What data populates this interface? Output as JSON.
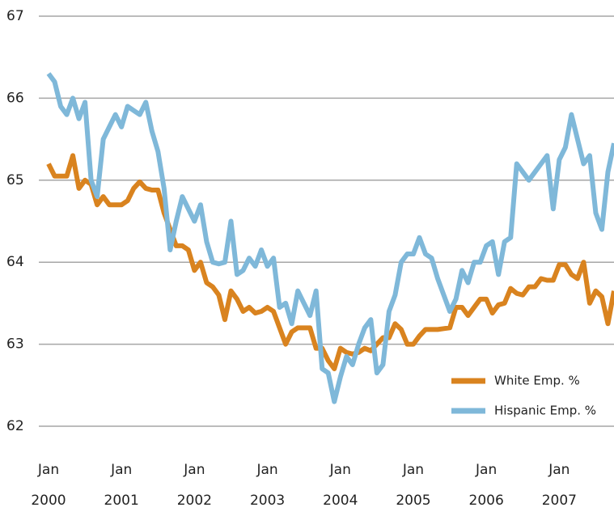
{
  "chart_data": {
    "type": "line",
    "categories": [
      "Jan 2000",
      null,
      null,
      null,
      null,
      null,
      null,
      null,
      null,
      null,
      null,
      null,
      "Jan 2001",
      null,
      null,
      null,
      null,
      null,
      null,
      null,
      null,
      null,
      null,
      null,
      "Jan 2002",
      null,
      null,
      null,
      null,
      null,
      null,
      null,
      null,
      null,
      null,
      null,
      "Jan 2003",
      null,
      null,
      null,
      null,
      null,
      null,
      null,
      null,
      null,
      null,
      null,
      "Jan 2004",
      null,
      null,
      null,
      null,
      null,
      null,
      null,
      null,
      null,
      null,
      null,
      "Jan 2005",
      null,
      null,
      null,
      null,
      null,
      null,
      null,
      null,
      null,
      null,
      null,
      "Jan 2006",
      null,
      null,
      null,
      null,
      null,
      null,
      null,
      null,
      null,
      null,
      null,
      "Jan 2007",
      null,
      null,
      null,
      null,
      null,
      null,
      null,
      null,
      null
    ],
    "series": [
      {
        "name": "White Emp. %",
        "color": "#d9831f",
        "values": [
          65.2,
          65.05,
          65.05,
          65.05,
          65.3,
          64.9,
          65.0,
          64.95,
          64.7,
          64.8,
          64.7,
          64.7,
          64.7,
          64.75,
          64.9,
          64.98,
          64.9,
          64.88,
          64.88,
          64.6,
          64.4,
          64.2,
          64.2,
          64.15,
          63.9,
          64.0,
          63.75,
          63.7,
          63.6,
          63.3,
          63.65,
          63.55,
          63.4,
          63.45,
          63.38,
          63.4,
          63.45,
          63.4,
          63.2,
          63.0,
          63.15,
          63.2,
          63.2,
          63.2,
          62.95,
          62.95,
          62.8,
          62.7,
          62.95,
          62.9,
          62.88,
          62.9,
          62.95,
          62.92,
          63.0,
          63.08,
          63.08,
          63.25,
          63.18,
          63.0,
          63.0,
          63.1,
          63.18,
          63.18,
          63.18,
          63.19,
          63.2,
          63.45,
          63.45,
          63.35,
          63.45,
          63.55,
          63.55,
          63.38,
          63.48,
          63.5,
          63.68,
          63.62,
          63.6,
          63.7,
          63.7,
          63.8,
          63.78,
          63.78,
          63.97,
          63.97,
          63.85,
          63.8,
          64.0,
          63.5,
          63.65,
          63.58,
          63.25,
          63.65
        ]
      },
      {
        "name": "Hispanic Emp. %",
        "color": "#7fb8d9",
        "values": [
          66.3,
          66.2,
          65.9,
          65.8,
          66.0,
          65.75,
          65.95,
          65.0,
          64.8,
          65.5,
          65.65,
          65.8,
          65.65,
          65.9,
          65.85,
          65.8,
          65.95,
          65.6,
          65.35,
          64.9,
          64.15,
          64.5,
          64.8,
          64.65,
          64.5,
          64.7,
          64.25,
          64.0,
          63.98,
          64.0,
          64.5,
          63.85,
          63.9,
          64.05,
          63.95,
          64.15,
          63.95,
          64.05,
          63.45,
          63.5,
          63.25,
          63.65,
          63.5,
          63.35,
          63.65,
          62.7,
          62.65,
          62.3,
          62.6,
          62.85,
          62.75,
          63.0,
          63.2,
          63.3,
          62.65,
          62.75,
          63.4,
          63.6,
          64.0,
          64.1,
          64.1,
          64.3,
          64.1,
          64.05,
          63.8,
          63.6,
          63.4,
          63.55,
          63.9,
          63.75,
          64.0,
          64.0,
          64.2,
          64.25,
          63.85,
          64.25,
          64.3,
          65.2,
          65.1,
          65.0,
          65.1,
          65.2,
          65.3,
          64.65,
          65.25,
          65.4,
          65.8,
          65.5,
          65.2,
          65.3,
          64.6,
          64.4,
          65.1,
          65.45
        ]
      }
    ],
    "ylim": [
      62,
      67
    ],
    "yticks": [
      62,
      63,
      64,
      65,
      66,
      67
    ],
    "grid": true,
    "legend": "lower right"
  }
}
